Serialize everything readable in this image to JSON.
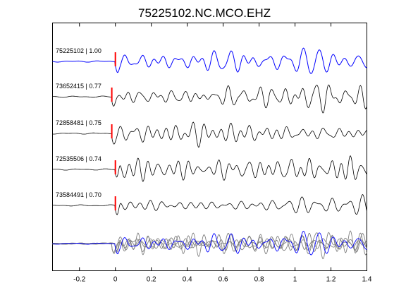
{
  "chart_data": {
    "type": "line",
    "title": "75225102.NC.MCO.EHZ",
    "xlabel": "",
    "ylabel": "",
    "xlim": [
      -0.35,
      1.4
    ],
    "x_ticks": [
      -0.2,
      0,
      0.2,
      0.4,
      0.6,
      0.8,
      1,
      1.2,
      1.4
    ],
    "x_tick_labels": [
      "-0.2",
      "0",
      "0.2",
      "0.4",
      "0.6",
      "0.8",
      "1",
      "1.2",
      "1.4"
    ],
    "grid": false,
    "colors": {
      "reference_trace": "#0000ff",
      "similar_trace": "#000000",
      "overlay_trace": "#808080",
      "pick_marker": "#ff0000"
    },
    "series": [
      {
        "name": "75225102 | 1.00",
        "pick_time": 0.0
      },
      {
        "name": "73652415 | 0.77",
        "pick_time": -0.02
      },
      {
        "name": "72858481 | 0.75",
        "pick_time": -0.02
      },
      {
        "name": "72535506 | 0.74",
        "pick_time": 0.0
      },
      {
        "name": "73584491 | 0.70",
        "pick_time": 0.0
      }
    ]
  }
}
